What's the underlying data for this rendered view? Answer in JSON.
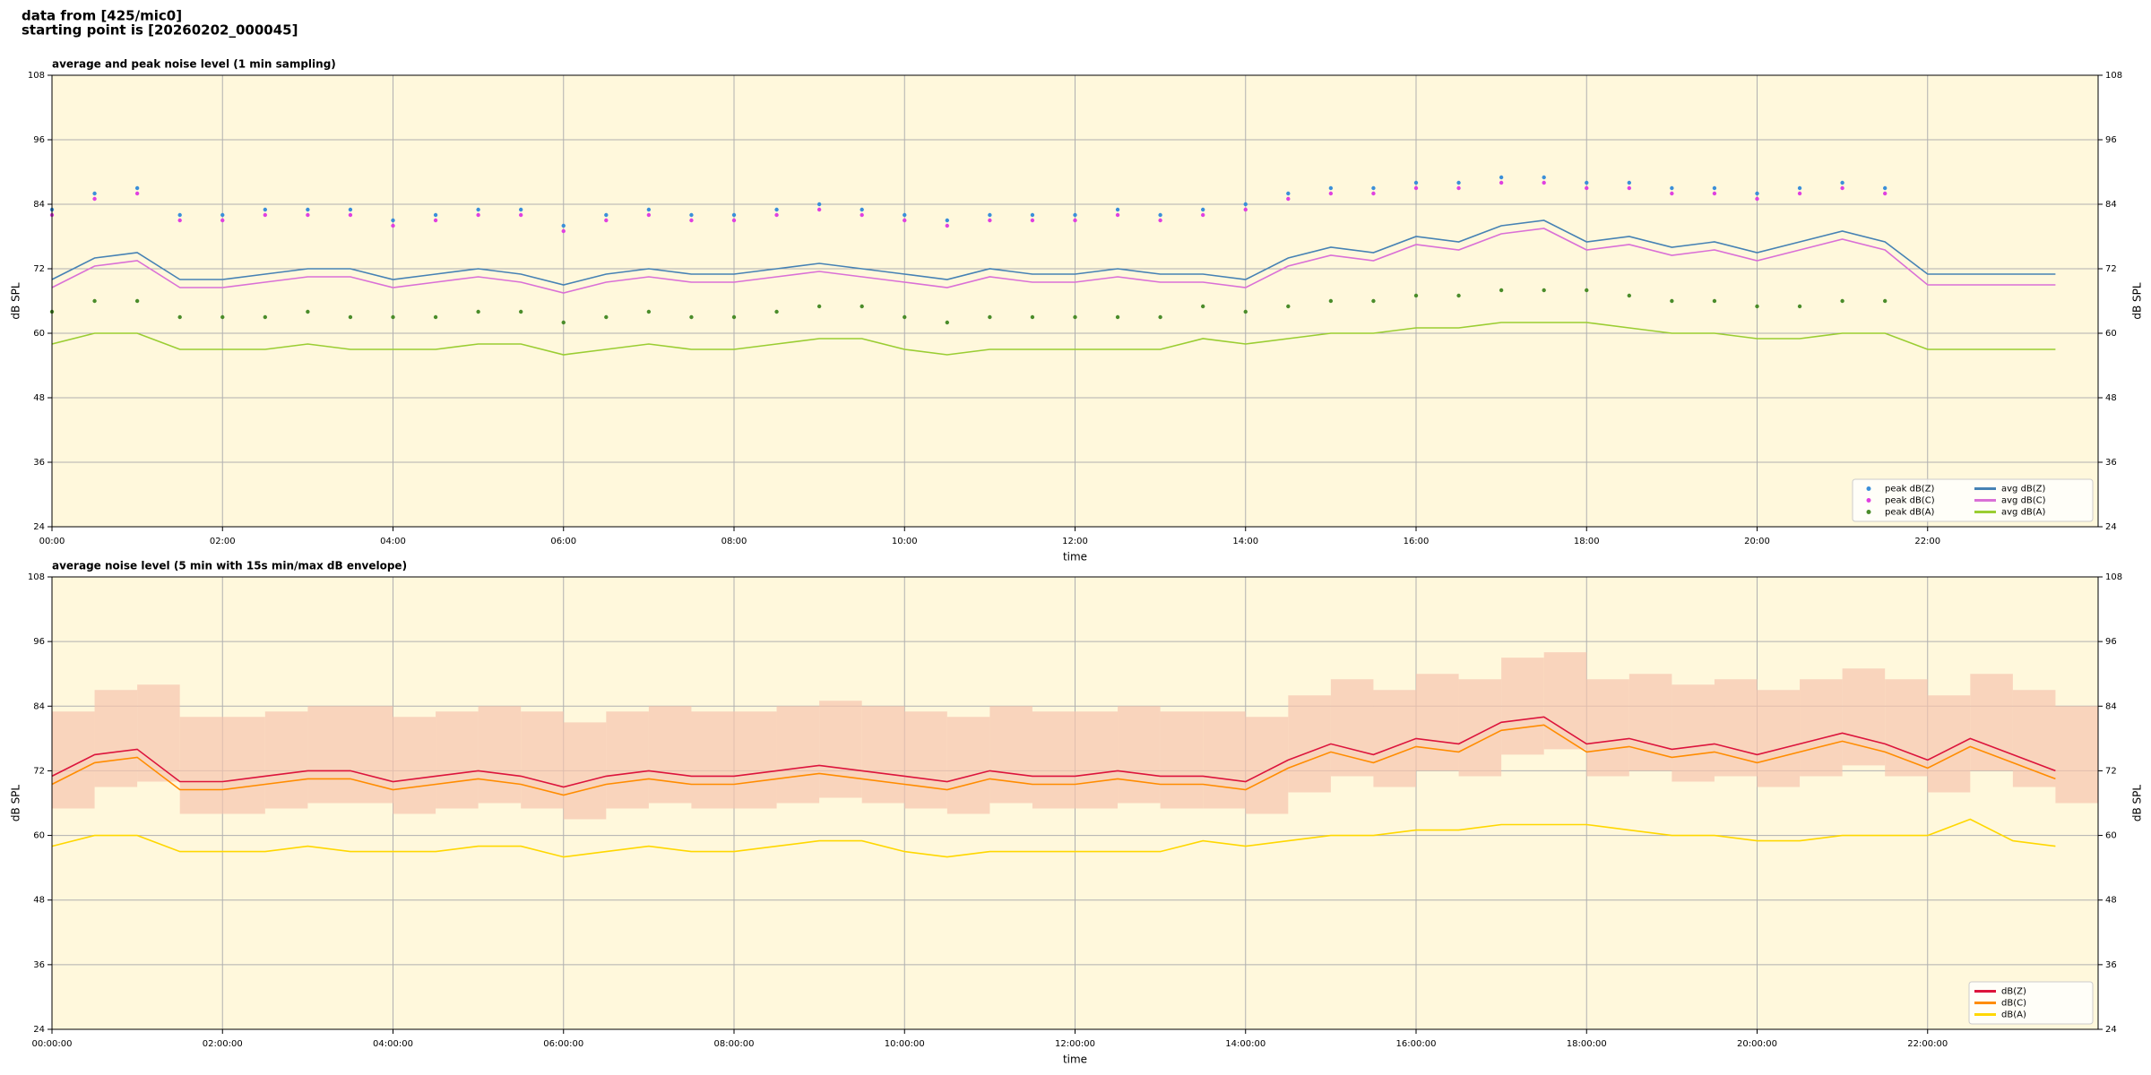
{
  "header": {
    "line1": "data from [425/mic0]",
    "line2": "starting point is [20260202_000045]"
  },
  "chart_data": [
    {
      "type": "line",
      "title": "average and peak noise level (1 min sampling)",
      "x_label": "time",
      "y_label": "dB SPL",
      "x": [
        "00:00",
        "00:30",
        "01:00",
        "01:30",
        "02:00",
        "02:30",
        "03:00",
        "03:30",
        "04:00",
        "04:30",
        "05:00",
        "05:30",
        "06:00",
        "06:30",
        "07:00",
        "07:30",
        "08:00",
        "08:30",
        "09:00",
        "09:30",
        "10:00",
        "10:30",
        "11:00",
        "11:30",
        "12:00",
        "12:30",
        "13:00",
        "13:30",
        "14:00",
        "14:30",
        "15:00",
        "15:30",
        "16:00",
        "16:30",
        "17:00",
        "17:30",
        "18:00",
        "18:30",
        "19:00",
        "19:30",
        "20:00",
        "20:30",
        "21:00",
        "21:30",
        "22:00",
        "22:30",
        "23:00",
        "23:30"
      ],
      "xlim": [
        "00:00",
        "24:00"
      ],
      "xticks": [
        "00:00",
        "02:00",
        "04:00",
        "06:00",
        "08:00",
        "10:00",
        "12:00",
        "14:00",
        "16:00",
        "18:00",
        "20:00",
        "22:00"
      ],
      "ylim": [
        24,
        108
      ],
      "yticks": [
        24,
        36,
        48,
        60,
        72,
        84,
        96,
        108
      ],
      "grid": true,
      "legend": "lower right",
      "background": "#fff8dc",
      "series": [
        {
          "name": "peak dB(Z)",
          "type": "scatter",
          "color": "#3b8fd9",
          "values": [
            83,
            86,
            87,
            82,
            82,
            83,
            83,
            83,
            81,
            82,
            83,
            83,
            80,
            82,
            83,
            82,
            82,
            83,
            84,
            83,
            82,
            81,
            82,
            82,
            82,
            83,
            82,
            83,
            84,
            86,
            87,
            87,
            88,
            88,
            89,
            89,
            88,
            88,
            87,
            87,
            86,
            87,
            88,
            87,
            null,
            null,
            null,
            null
          ]
        },
        {
          "name": "peak dB(C)",
          "type": "scatter",
          "color": "#e040e0",
          "values": [
            82,
            85,
            86,
            81,
            81,
            82,
            82,
            82,
            80,
            81,
            82,
            82,
            79,
            81,
            82,
            81,
            81,
            82,
            83,
            82,
            81,
            80,
            81,
            81,
            81,
            82,
            81,
            82,
            83,
            85,
            86,
            86,
            87,
            87,
            88,
            88,
            87,
            87,
            86,
            86,
            85,
            86,
            87,
            86,
            null,
            null,
            null,
            null
          ]
        },
        {
          "name": "peak dB(A)",
          "type": "scatter",
          "color": "#4a8c2a",
          "values": [
            64,
            66,
            66,
            63,
            63,
            63,
            64,
            63,
            63,
            63,
            64,
            64,
            62,
            63,
            64,
            63,
            63,
            64,
            65,
            65,
            63,
            62,
            63,
            63,
            63,
            63,
            63,
            65,
            64,
            65,
            66,
            66,
            67,
            67,
            68,
            68,
            68,
            67,
            66,
            66,
            65,
            65,
            66,
            66,
            null,
            null,
            null,
            null
          ]
        },
        {
          "name": "avg dB(Z)",
          "type": "line",
          "color": "#4682b4",
          "values": [
            70,
            74,
            75,
            70,
            70,
            71,
            72,
            72,
            70,
            71,
            72,
            71,
            69,
            71,
            72,
            71,
            71,
            72,
            73,
            72,
            71,
            70,
            72,
            71,
            71,
            72,
            71,
            71,
            70,
            74,
            76,
            75,
            78,
            77,
            80,
            81,
            77,
            78,
            76,
            77,
            75,
            77,
            79,
            77,
            71,
            71,
            71,
            71
          ]
        },
        {
          "name": "avg dB(C)",
          "type": "line",
          "color": "#da70d6",
          "values": [
            68.5,
            72.5,
            73.5,
            68.5,
            68.5,
            69.5,
            70.5,
            70.5,
            68.5,
            69.5,
            70.5,
            69.5,
            67.5,
            69.5,
            70.5,
            69.5,
            69.5,
            70.5,
            71.5,
            70.5,
            69.5,
            68.5,
            70.5,
            69.5,
            69.5,
            70.5,
            69.5,
            69.5,
            68.5,
            72.5,
            74.5,
            73.5,
            76.5,
            75.5,
            78.5,
            79.5,
            75.5,
            76.5,
            74.5,
            75.5,
            73.5,
            75.5,
            77.5,
            75.5,
            69,
            69,
            69,
            69
          ]
        },
        {
          "name": "avg dB(A)",
          "type": "line",
          "color": "#9acd32",
          "values": [
            58,
            60,
            60,
            57,
            57,
            57,
            58,
            57,
            57,
            57,
            58,
            58,
            56,
            57,
            58,
            57,
            57,
            58,
            59,
            59,
            57,
            56,
            57,
            57,
            57,
            57,
            57,
            59,
            58,
            59,
            60,
            60,
            61,
            61,
            62,
            62,
            62,
            61,
            60,
            60,
            59,
            59,
            60,
            60,
            57,
            57,
            57,
            57
          ]
        }
      ]
    },
    {
      "type": "line",
      "title": "average noise level (5 min with 15s min/max dB envelope)",
      "x_label": "time",
      "y_label": "dB SPL",
      "x": [
        "00:00:00",
        "00:30:00",
        "01:00:00",
        "01:30:00",
        "02:00:00",
        "02:30:00",
        "03:00:00",
        "03:30:00",
        "04:00:00",
        "04:30:00",
        "05:00:00",
        "05:30:00",
        "06:00:00",
        "06:30:00",
        "07:00:00",
        "07:30:00",
        "08:00:00",
        "08:30:00",
        "09:00:00",
        "09:30:00",
        "10:00:00",
        "10:30:00",
        "11:00:00",
        "11:30:00",
        "12:00:00",
        "12:30:00",
        "13:00:00",
        "13:30:00",
        "14:00:00",
        "14:30:00",
        "15:00:00",
        "15:30:00",
        "16:00:00",
        "16:30:00",
        "17:00:00",
        "17:30:00",
        "18:00:00",
        "18:30:00",
        "19:00:00",
        "19:30:00",
        "20:00:00",
        "20:30:00",
        "21:00:00",
        "21:30:00",
        "22:00:00",
        "22:30:00",
        "23:00:00",
        "23:30:00"
      ],
      "xlim": [
        "00:00:00",
        "24:00:00"
      ],
      "xticks": [
        "00:00:00",
        "02:00:00",
        "04:00:00",
        "06:00:00",
        "08:00:00",
        "10:00:00",
        "12:00:00",
        "14:00:00",
        "16:00:00",
        "18:00:00",
        "20:00:00",
        "22:00:00"
      ],
      "ylim": [
        24,
        108
      ],
      "yticks": [
        24,
        36,
        48,
        60,
        72,
        84,
        96,
        108
      ],
      "grid": true,
      "legend": "lower right",
      "background": "#fff8dc",
      "envelope": {
        "color": "#f7c4ae",
        "lower": [
          65,
          69,
          70,
          64,
          64,
          65,
          66,
          66,
          64,
          65,
          66,
          65,
          63,
          65,
          66,
          65,
          65,
          66,
          67,
          66,
          65,
          64,
          66,
          65,
          65,
          66,
          65,
          65,
          64,
          68,
          71,
          69,
          72,
          71,
          75,
          76,
          71,
          72,
          70,
          71,
          69,
          71,
          73,
          71,
          68,
          72,
          69,
          66
        ],
        "upper": [
          83,
          87,
          88,
          82,
          82,
          83,
          84,
          84,
          82,
          83,
          84,
          83,
          81,
          83,
          84,
          83,
          83,
          84,
          85,
          84,
          83,
          82,
          84,
          83,
          83,
          84,
          83,
          83,
          82,
          86,
          89,
          87,
          90,
          89,
          93,
          94,
          89,
          90,
          88,
          89,
          87,
          89,
          91,
          89,
          86,
          90,
          87,
          84
        ]
      },
      "series": [
        {
          "name": "dB(Z)",
          "type": "line",
          "color": "#dc143c",
          "values": [
            71,
            75,
            76,
            70,
            70,
            71,
            72,
            72,
            70,
            71,
            72,
            71,
            69,
            71,
            72,
            71,
            71,
            72,
            73,
            72,
            71,
            70,
            72,
            71,
            71,
            72,
            71,
            71,
            70,
            74,
            77,
            75,
            78,
            77,
            81,
            82,
            77,
            78,
            76,
            77,
            75,
            77,
            79,
            77,
            74,
            78,
            75,
            72
          ]
        },
        {
          "name": "dB(C)",
          "type": "line",
          "color": "#ff8c00",
          "values": [
            69.5,
            73.5,
            74.5,
            68.5,
            68.5,
            69.5,
            70.5,
            70.5,
            68.5,
            69.5,
            70.5,
            69.5,
            67.5,
            69.5,
            70.5,
            69.5,
            69.5,
            70.5,
            71.5,
            70.5,
            69.5,
            68.5,
            70.5,
            69.5,
            69.5,
            70.5,
            69.5,
            69.5,
            68.5,
            72.5,
            75.5,
            73.5,
            76.5,
            75.5,
            79.5,
            80.5,
            75.5,
            76.5,
            74.5,
            75.5,
            73.5,
            75.5,
            77.5,
            75.5,
            72.5,
            76.5,
            73.5,
            70.5
          ]
        },
        {
          "name": "dB(A)",
          "type": "line",
          "color": "#ffd700",
          "values": [
            58,
            60,
            60,
            57,
            57,
            57,
            58,
            57,
            57,
            57,
            58,
            58,
            56,
            57,
            58,
            57,
            57,
            58,
            59,
            59,
            57,
            56,
            57,
            57,
            57,
            57,
            57,
            59,
            58,
            59,
            60,
            60,
            61,
            61,
            62,
            62,
            62,
            61,
            60,
            60,
            59,
            59,
            60,
            60,
            60,
            63,
            59,
            58
          ]
        }
      ]
    }
  ]
}
